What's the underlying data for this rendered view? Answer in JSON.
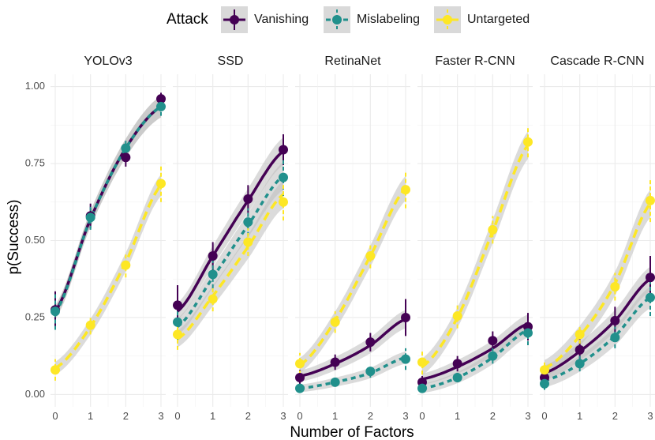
{
  "chart_data": {
    "type": "line",
    "xlabel": "Number of Factors",
    "ylabel": "p(Success)",
    "x": [
      0,
      1,
      2,
      3
    ],
    "x_ticks": [
      "0",
      "1",
      "2",
      "3"
    ],
    "ylim": [
      -0.04,
      1.04
    ],
    "y_ticks": [
      {
        "value": 0.0,
        "label": "0.00"
      },
      {
        "value": 0.25,
        "label": "0.25"
      },
      {
        "value": 0.5,
        "label": "0.50"
      },
      {
        "value": 0.75,
        "label": "0.75"
      },
      {
        "value": 1.0,
        "label": "1.00"
      }
    ],
    "grid": true,
    "legend": {
      "title": "Attack",
      "position": "top",
      "entries": [
        {
          "name": "Vanishing",
          "color": "#440154",
          "linetype": "solid"
        },
        {
          "name": "Mislabeling",
          "color": "#21908C",
          "linetype": "dashed"
        },
        {
          "name": "Untargeted",
          "color": "#FDE725",
          "linetype": "longdash"
        }
      ]
    },
    "band_color": "#BEBEBE",
    "panels": [
      {
        "title": "YOLOv3",
        "series": [
          {
            "name": "Vanishing",
            "points": [
              0.275,
              0.58,
              0.77,
              0.96
            ],
            "err": [
              0.06,
              0.04,
              0.03,
              0.02
            ],
            "fit": [
              0.27,
              0.57,
              0.8,
              0.935
            ],
            "band": 0.035
          },
          {
            "name": "Mislabeling",
            "points": [
              0.27,
              0.575,
              0.8,
              0.935
            ],
            "err": [
              0.06,
              0.04,
              0.03,
              0.03
            ],
            "fit": [
              0.265,
              0.57,
              0.8,
              0.935
            ],
            "band": 0.035
          },
          {
            "name": "Untargeted",
            "points": [
              0.08,
              0.225,
              0.42,
              0.685
            ],
            "err": [
              0.035,
              0.03,
              0.04,
              0.06
            ],
            "fit": [
              0.085,
              0.22,
              0.43,
              0.68
            ],
            "band": 0.035
          }
        ]
      },
      {
        "title": "SSD",
        "series": [
          {
            "name": "Vanishing",
            "points": [
              0.29,
              0.45,
              0.635,
              0.795
            ],
            "err": [
              0.065,
              0.045,
              0.045,
              0.05
            ],
            "fit": [
              0.27,
              0.45,
              0.63,
              0.79
            ],
            "band": 0.045
          },
          {
            "name": "Mislabeling",
            "points": [
              0.235,
              0.39,
              0.56,
              0.705
            ],
            "err": [
              0.06,
              0.045,
              0.045,
              0.06
            ],
            "fit": [
              0.22,
              0.38,
              0.55,
              0.71
            ],
            "band": 0.045
          },
          {
            "name": "Untargeted",
            "points": [
              0.195,
              0.31,
              0.495,
              0.625
            ],
            "err": [
              0.05,
              0.04,
              0.045,
              0.06
            ],
            "fit": [
              0.18,
              0.32,
              0.48,
              0.65
            ],
            "band": 0.045
          }
        ]
      },
      {
        "title": "RetinaNet",
        "series": [
          {
            "name": "Vanishing",
            "points": [
              0.055,
              0.105,
              0.17,
              0.25
            ],
            "err": [
              0.025,
              0.025,
              0.03,
              0.06
            ],
            "fit": [
              0.06,
              0.1,
              0.16,
              0.245
            ],
            "band": 0.03
          },
          {
            "name": "Mislabeling",
            "points": [
              0.02,
              0.04,
              0.075,
              0.115
            ],
            "err": [
              0.012,
              0.015,
              0.02,
              0.035
            ],
            "fit": [
              0.02,
              0.04,
              0.07,
              0.12
            ],
            "band": 0.02
          },
          {
            "name": "Untargeted",
            "points": [
              0.1,
              0.235,
              0.45,
              0.665
            ],
            "err": [
              0.035,
              0.035,
              0.04,
              0.06
            ],
            "fit": [
              0.095,
              0.24,
              0.45,
              0.67
            ],
            "band": 0.04
          }
        ]
      },
      {
        "title": "Faster R-CNN",
        "series": [
          {
            "name": "Vanishing",
            "points": [
              0.04,
              0.1,
              0.175,
              0.22
            ],
            "err": [
              0.02,
              0.025,
              0.03,
              0.045
            ],
            "fit": [
              0.05,
              0.09,
              0.15,
              0.23
            ],
            "band": 0.03
          },
          {
            "name": "Mislabeling",
            "points": [
              0.02,
              0.055,
              0.125,
              0.2
            ],
            "err": [
              0.012,
              0.015,
              0.025,
              0.04
            ],
            "fit": [
              0.02,
              0.055,
              0.12,
              0.21
            ],
            "band": 0.025
          },
          {
            "name": "Untargeted",
            "points": [
              0.105,
              0.255,
              0.535,
              0.82
            ],
            "err": [
              0.04,
              0.04,
              0.045,
              0.05
            ],
            "fit": [
              0.09,
              0.25,
              0.53,
              0.81
            ],
            "band": 0.045
          }
        ]
      },
      {
        "title": "Cascade R-CNN",
        "series": [
          {
            "name": "Vanishing",
            "points": [
              0.055,
              0.145,
              0.24,
              0.38
            ],
            "err": [
              0.025,
              0.035,
              0.045,
              0.07
            ],
            "fit": [
              0.07,
              0.14,
              0.24,
              0.375
            ],
            "band": 0.04
          },
          {
            "name": "Mislabeling",
            "points": [
              0.035,
              0.1,
              0.185,
              0.315
            ],
            "err": [
              0.02,
              0.025,
              0.035,
              0.06
            ],
            "fit": [
              0.045,
              0.1,
              0.19,
              0.315
            ],
            "band": 0.035
          },
          {
            "name": "Untargeted",
            "points": [
              0.08,
              0.195,
              0.35,
              0.63
            ],
            "err": [
              0.03,
              0.03,
              0.045,
              0.07
            ],
            "fit": [
              0.085,
              0.19,
              0.36,
              0.62
            ],
            "band": 0.045
          }
        ]
      }
    ]
  }
}
